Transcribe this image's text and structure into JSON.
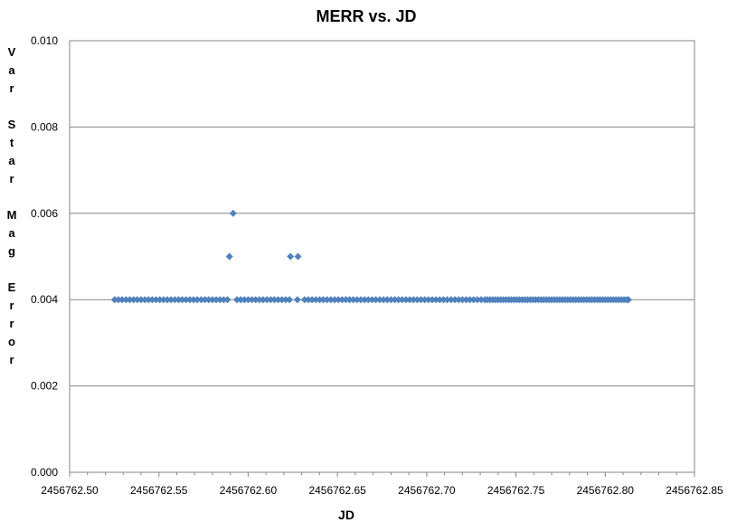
{
  "chart_data": {
    "type": "scatter",
    "title": "MERR vs. JD",
    "xlabel": "JD",
    "ylabel": "Var Star Mag Error",
    "xlim": [
      2456762.5,
      2456762.85
    ],
    "ylim": [
      0.0,
      0.01
    ],
    "x_ticks": [
      "2456762.50",
      "2456762.55",
      "2456762.60",
      "2456762.65",
      "2456762.70",
      "2456762.75",
      "2456762.80",
      "2456762.85"
    ],
    "y_ticks": [
      "0.000",
      "0.002",
      "0.004",
      "0.006",
      "0.008",
      "0.010"
    ],
    "grid": "horizontal",
    "marker": "diamond",
    "series_color": "#4f81bd",
    "baseline_series": {
      "y": 0.004,
      "x": [
        2456762.5252,
        2456762.5273,
        2456762.5294,
        2456762.5316,
        2456762.5337,
        2456762.5358,
        2456762.5379,
        2456762.54,
        2456762.5421,
        2456762.5442,
        2456762.5463,
        2456762.5484,
        2456762.5505,
        2456762.5526,
        2456762.5547,
        2456762.5568,
        2456762.5589,
        2456762.561,
        2456762.5631,
        2456762.5652,
        2456762.5673,
        2456762.5694,
        2456762.5715,
        2456762.5737,
        2456762.5758,
        2456762.5779,
        2456762.58,
        2456762.5821,
        2456762.5842,
        2456762.5863,
        2456762.5884,
        2456762.5937,
        2456762.5958,
        2456762.5979,
        2456762.6,
        2456762.6021,
        2456762.6042,
        2456762.6063,
        2456762.6084,
        2456762.6105,
        2456762.6126,
        2456762.6147,
        2456762.6168,
        2456762.6189,
        2456762.621,
        2456762.6231,
        2456762.6276,
        2456762.6316,
        2456762.6337,
        2456762.6358,
        2456762.6379,
        2456762.64,
        2456762.6421,
        2456762.6442,
        2456762.6463,
        2456762.6484,
        2456762.6505,
        2456762.6526,
        2456762.6547,
        2456762.6568,
        2456762.6589,
        2456762.661,
        2456762.6631,
        2456762.6652,
        2456762.6673,
        2456762.6694,
        2456762.6715,
        2456762.6737,
        2456762.6758,
        2456762.6779,
        2456762.68,
        2456762.6821,
        2456762.6842,
        2456762.6863,
        2456762.6884,
        2456762.6905,
        2456762.6926,
        2456762.6947,
        2456762.6968,
        2456762.6989,
        2456762.701,
        2456762.7031,
        2456762.7052,
        2456762.7073,
        2456762.7094,
        2456762.7115,
        2456762.7137,
        2456762.7158,
        2456762.7179,
        2456762.72,
        2456762.7221,
        2456762.7242,
        2456762.7263,
        2456762.7284,
        2456762.7305,
        2456762.7326,
        2456762.734,
        2456762.7355,
        2456762.737,
        2456762.7385,
        2456762.74,
        2456762.7415,
        2456762.743,
        2456762.7445,
        2456762.746,
        2456762.7475,
        2456762.749,
        2456762.7505,
        2456762.752,
        2456762.7535,
        2456762.755,
        2456762.7565,
        2456762.758,
        2456762.7595,
        2456762.761,
        2456762.7625,
        2456762.764,
        2456762.7655,
        2456762.767,
        2456762.7685,
        2456762.77,
        2456762.7715,
        2456762.773,
        2456762.7745,
        2456762.776,
        2456762.7775,
        2456762.779,
        2456762.7805,
        2456762.782,
        2456762.7835,
        2456762.785,
        2456762.7865,
        2456762.788,
        2456762.7895,
        2456762.791,
        2456762.7925,
        2456762.794,
        2456762.7955,
        2456762.797,
        2456762.7985,
        2456762.8,
        2456762.8015,
        2456762.803,
        2456762.8045,
        2456762.806,
        2456762.8075,
        2456762.809,
        2456762.8105,
        2456762.812,
        2456762.813
      ]
    },
    "outliers": [
      {
        "x": 2456762.5895,
        "y": 0.005
      },
      {
        "x": 2456762.5916,
        "y": 0.006
      },
      {
        "x": 2456762.6237,
        "y": 0.005
      },
      {
        "x": 2456762.6279,
        "y": 0.005
      }
    ]
  }
}
